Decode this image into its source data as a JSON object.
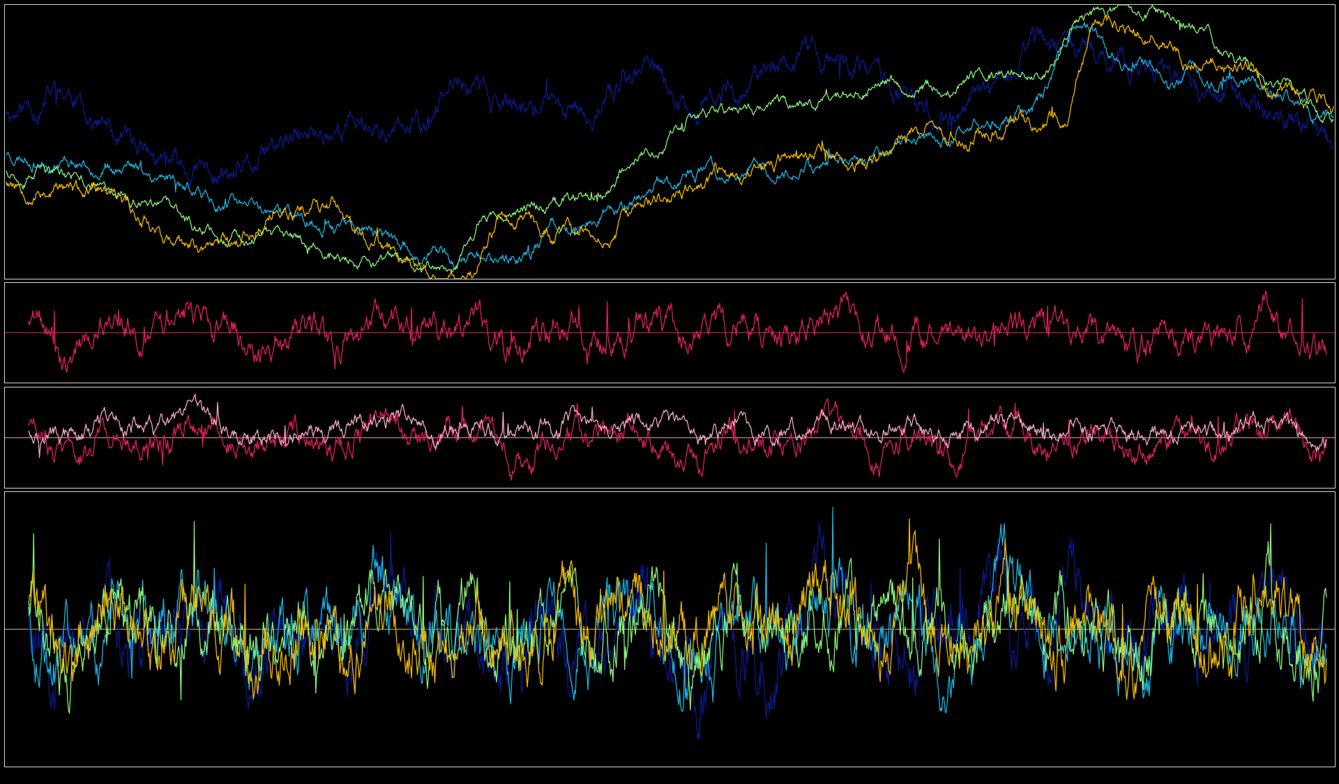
{
  "chart_data": [
    {
      "type": "line",
      "panel": "price",
      "grid": false,
      "points": 1600,
      "series": [
        {
          "key": "s1",
          "color": "#0a1a8c",
          "seed": 11,
          "trend": [
            62,
            68,
            52,
            38,
            36,
            48,
            58,
            54,
            70,
            62,
            60,
            76,
            64,
            72,
            80,
            74,
            58,
            66,
            84,
            80,
            76,
            66,
            60,
            50
          ],
          "noise": 3.2
        },
        {
          "key": "s2",
          "color": "#1ab4e0",
          "seed": 23,
          "trend": [
            46,
            44,
            42,
            38,
            30,
            24,
            22,
            18,
            10,
            6,
            8,
            18,
            26,
            36,
            38,
            42,
            44,
            48,
            50,
            56,
            60,
            94,
            80,
            74,
            72,
            66,
            56
          ],
          "noise": 1.8
        },
        {
          "key": "s3",
          "color": "#8af07a",
          "seed": 37,
          "trend": [
            40,
            38,
            34,
            26,
            18,
            14,
            12,
            6,
            4,
            6,
            26,
            28,
            32,
            46,
            58,
            62,
            64,
            68,
            72,
            70,
            74,
            78,
            96,
            98,
            94,
            82,
            70,
            60
          ],
          "noise": 1.6
        },
        {
          "key": "s4",
          "color": "#f0b800",
          "seed": 53,
          "trend": [
            36,
            34,
            30,
            22,
            10,
            16,
            24,
            28,
            12,
            6,
            2,
            24,
            16,
            14,
            26,
            34,
            38,
            42,
            46,
            44,
            54,
            52,
            56,
            58,
            96,
            90,
            82,
            76,
            68,
            62
          ],
          "noise": 2.0
        }
      ],
      "ylim": [
        0,
        100
      ]
    },
    {
      "type": "line",
      "panel": "momentum",
      "grid": false,
      "points": 1560,
      "baseline": 0,
      "baseline_color": "#c0305a",
      "series": [
        {
          "key": "m1",
          "color": "#e0205a",
          "seed": 71,
          "amp": 0.9,
          "noise": 0.55
        }
      ],
      "ylim": [
        -1.6,
        1.6
      ]
    },
    {
      "type": "line",
      "panel": "oscillator",
      "grid": false,
      "points": 1560,
      "baseline": 0,
      "baseline_color": "#f0b0c8",
      "series": [
        {
          "key": "o1",
          "color": "#e0205a",
          "seed": 83,
          "amp": 0.85,
          "noise": 0.5
        },
        {
          "key": "o2",
          "color": "#f0a8c8",
          "seed": 97,
          "amp": 0.45,
          "noise": 0.35,
          "offset": 0.25
        }
      ],
      "ylim": [
        -1.6,
        1.6
      ]
    },
    {
      "type": "line",
      "panel": "detrended",
      "grid": false,
      "points": 1560,
      "baseline": 0,
      "baseline_color": "#e8c070",
      "series": [
        {
          "key": "d1",
          "color": "#0a1a8c",
          "seed": 101,
          "amp": 0.8,
          "noise": 0.7
        },
        {
          "key": "d2",
          "color": "#1ab4e0",
          "seed": 113,
          "amp": 0.85,
          "noise": 0.6
        },
        {
          "key": "d3",
          "color": "#8af07a",
          "seed": 127,
          "amp": 0.85,
          "noise": 0.6
        },
        {
          "key": "d4",
          "color": "#f0b800",
          "seed": 139,
          "amp": 0.85,
          "noise": 0.6
        }
      ],
      "ylim": [
        -2.2,
        2.2
      ]
    }
  ],
  "colors": {
    "background": "#000000",
    "frame": "#d8d8d8"
  }
}
